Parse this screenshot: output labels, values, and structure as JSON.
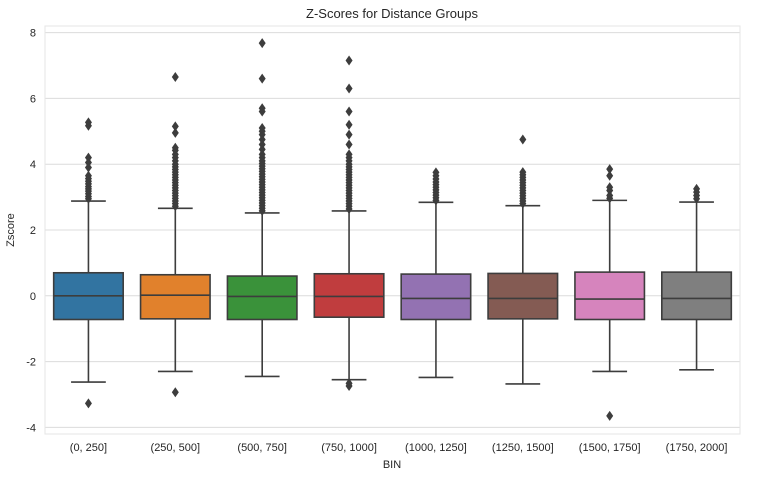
{
  "chart_data": {
    "type": "box",
    "title": "Z-Scores for Distance Groups",
    "xlabel": "BIN",
    "ylabel": "Zscore",
    "ylim": [
      -4.2,
      8.2
    ],
    "yticks": [
      -4,
      -2,
      0,
      2,
      4,
      6,
      8
    ],
    "grid": true,
    "categories": [
      "(0, 250]",
      "(250, 500]",
      "(500, 750]",
      "(750, 1000]",
      "(1000, 1250]",
      "(1250, 1500]",
      "(1500, 1750]",
      "(1750, 2000]"
    ],
    "colors": [
      "#3274a1",
      "#e1812c",
      "#3a923a",
      "#c03d3e",
      "#9372b2",
      "#845b53",
      "#d684bd",
      "#7f7f7f"
    ],
    "boxes": [
      {
        "q1": -0.72,
        "median": 0.0,
        "q3": 0.7,
        "whisker_low": -2.62,
        "whisker_high": 2.88,
        "outliers": [
          -3.27,
          2.95,
          3.02,
          3.1,
          3.18,
          3.25,
          3.32,
          3.4,
          3.48,
          3.56,
          3.65,
          3.9,
          4.05,
          4.2,
          5.17,
          5.27
        ]
      },
      {
        "q1": -0.7,
        "median": 0.02,
        "q3": 0.64,
        "whisker_low": -2.3,
        "whisker_high": 2.66,
        "outliers": [
          -2.93,
          2.72,
          2.8,
          2.88,
          2.96,
          3.04,
          3.12,
          3.2,
          3.28,
          3.36,
          3.44,
          3.52,
          3.6,
          3.68,
          3.76,
          3.84,
          3.92,
          4.0,
          4.1,
          4.2,
          4.3,
          4.42,
          4.5,
          4.95,
          5.15,
          6.65
        ]
      },
      {
        "q1": -0.72,
        "median": -0.02,
        "q3": 0.6,
        "whisker_low": -2.45,
        "whisker_high": 2.52,
        "outliers": [
          2.58,
          2.66,
          2.74,
          2.82,
          2.9,
          2.98,
          3.06,
          3.14,
          3.22,
          3.3,
          3.38,
          3.46,
          3.54,
          3.62,
          3.7,
          3.78,
          3.86,
          3.94,
          4.02,
          4.1,
          4.2,
          4.3,
          4.45,
          4.6,
          4.75,
          4.9,
          5.0,
          5.1,
          5.6,
          5.7,
          6.6,
          7.68
        ]
      },
      {
        "q1": -0.65,
        "median": -0.02,
        "q3": 0.67,
        "whisker_low": -2.55,
        "whisker_high": 2.58,
        "outliers": [
          -2.74,
          -2.66,
          2.64,
          2.72,
          2.8,
          2.88,
          2.96,
          3.04,
          3.12,
          3.2,
          3.28,
          3.36,
          3.44,
          3.52,
          3.6,
          3.68,
          3.76,
          3.84,
          3.92,
          4.0,
          4.1,
          4.2,
          4.3,
          4.6,
          4.9,
          5.2,
          5.6,
          6.3,
          7.15
        ]
      },
      {
        "q1": -0.72,
        "median": -0.08,
        "q3": 0.66,
        "whisker_low": -2.48,
        "whisker_high": 2.84,
        "outliers": [
          2.9,
          2.98,
          3.06,
          3.14,
          3.22,
          3.3,
          3.38,
          3.46,
          3.55,
          3.65,
          3.75
        ]
      },
      {
        "q1": -0.7,
        "median": -0.08,
        "q3": 0.68,
        "whisker_low": -2.68,
        "whisker_high": 2.74,
        "outliers": [
          2.8,
          2.88,
          2.96,
          3.04,
          3.12,
          3.2,
          3.28,
          3.36,
          3.44,
          3.52,
          3.6,
          3.68,
          3.76,
          4.75
        ]
      },
      {
        "q1": -0.72,
        "median": -0.1,
        "q3": 0.72,
        "whisker_low": -2.3,
        "whisker_high": 2.9,
        "outliers": [
          -3.65,
          2.96,
          3.05,
          3.2,
          3.3,
          3.65,
          3.85
        ]
      },
      {
        "q1": -0.72,
        "median": -0.08,
        "q3": 0.72,
        "whisker_low": -2.25,
        "whisker_high": 2.85,
        "outliers": [
          2.95,
          3.05,
          3.15,
          3.25
        ]
      }
    ]
  }
}
